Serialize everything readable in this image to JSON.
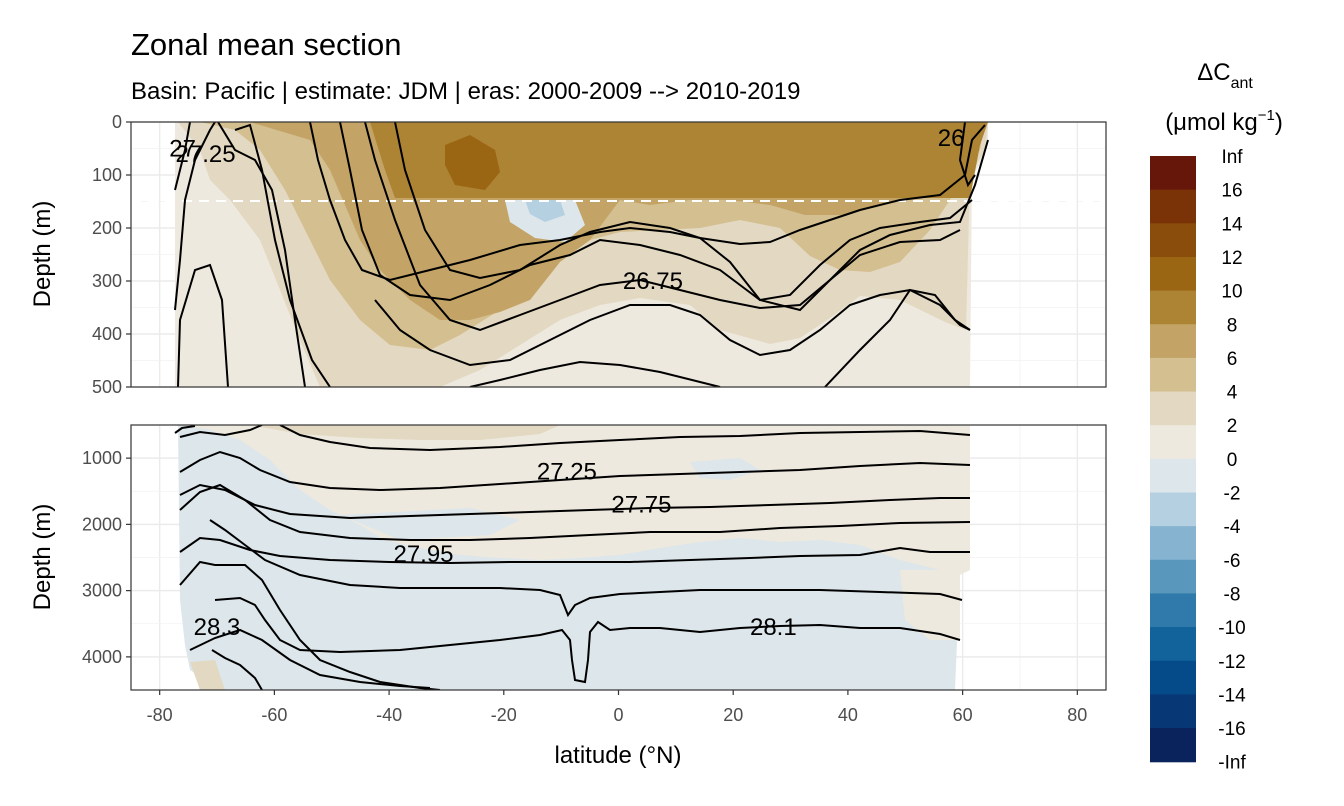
{
  "chart_data": {
    "type": "heatmap",
    "title": "Zonal mean section",
    "subtitle": "Basin: Pacific | estimate: JDM  | eras: 2000-2009 --> 2010-2019",
    "xlabel": "latitude (°N)",
    "ylabel": "Depth (m)",
    "xlim": [
      -85,
      85
    ],
    "x_ticks": [
      -80,
      -60,
      -40,
      -20,
      0,
      20,
      40,
      60,
      80
    ],
    "panels": [
      {
        "name": "upper",
        "ylim": [
          0,
          500
        ],
        "y_ticks": [
          0,
          100,
          200,
          300,
          400,
          500
        ],
        "reference_line_depth": 150,
        "contour_labels": [
          {
            "text": "27.25",
            "lat": -72,
            "depth": 60
          },
          {
            "text": "27",
            "lat": -76,
            "depth": 50
          },
          {
            "text": "26.75",
            "lat": 6,
            "depth": 300
          },
          {
            "text": "26",
            "lat": 58,
            "depth": 30
          }
        ]
      },
      {
        "name": "lower",
        "ylim": [
          500,
          4500
        ],
        "y_ticks": [
          1000,
          2000,
          3000,
          4000
        ],
        "contour_labels": [
          {
            "text": "27.25",
            "lat": -9,
            "depth": 1200
          },
          {
            "text": "27.75",
            "lat": 4,
            "depth": 1700
          },
          {
            "text": "27.95",
            "lat": -34,
            "depth": 2450
          },
          {
            "text": "28.3",
            "lat": -70,
            "depth": 3550
          },
          {
            "text": "28.1",
            "lat": 27,
            "depth": 3550
          }
        ]
      }
    ],
    "legend": {
      "title_main": "ΔC",
      "title_sub": "ant",
      "unit_main": "(μmol kg",
      "unit_sup": "−1",
      "unit_close": ")",
      "placement": "right",
      "labels": [
        "Inf",
        "16",
        "14",
        "12",
        "10",
        "8",
        "6",
        "4",
        "2",
        "0",
        "-2",
        "-4",
        "-6",
        "-8",
        "-10",
        "-12",
        "-14",
        "-16",
        "-Inf"
      ],
      "colors": [
        "#67170a",
        "#7a3207",
        "#8a4d0b",
        "#9b6614",
        "#ad8334",
        "#c3a466",
        "#d4bf91",
        "#e3d8c1",
        "#eee9de",
        "#dce6eb",
        "#b4d0e1",
        "#86b3cf",
        "#5a97bd",
        "#2f7aaa",
        "#12629b",
        "#054b8a",
        "#073775",
        "#0a235d"
      ]
    }
  }
}
